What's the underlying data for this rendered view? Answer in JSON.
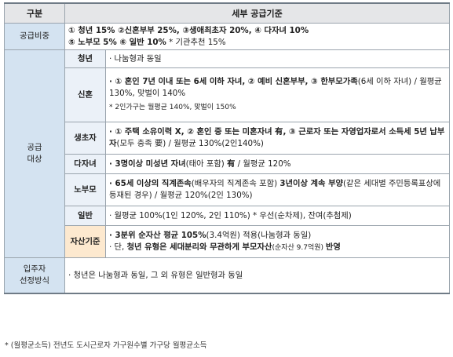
{
  "header": {
    "col1": "구분",
    "col2": "세부 공급기준"
  },
  "supply_ratio": {
    "label": "공급비중",
    "line1": "① 청년 15% ②신혼부부 25%, ③생애최초자 20%, ④ 다자녀 10%",
    "line2_bold": "⑤ 노부모 5% ⑥ 일반 10%",
    "line2_rest": "  * 기관추천 15%"
  },
  "target": {
    "label_line1": "공급",
    "label_line2": "대상",
    "youth": {
      "label": "청년",
      "text": "· 나눔형과 동일"
    },
    "newlywed": {
      "label": "신혼",
      "line1_bold": "· ① 혼인 7년 이내 또는 6세 이하 자녀, ② 예비 신혼부부, ③ 한부모가족",
      "line1_rest": "(6세 이하 자녀) / 월평균 130%, 맞벌이 140%",
      "note": "* 2인가구는 월평균 140%, 맞벌이 150%"
    },
    "first_time": {
      "label": "생초자",
      "line_bold": "· ① 주택 소유이력 X, ② 혼인 중 또는 미혼자녀 有, ③ 근로자 또는 자영업자로서 소득세 5년 납부자",
      "line_rest": "(모두 충족 要) / 월평균 130%(2인140%)"
    },
    "multi_child": {
      "label": "다자녀",
      "text_bold": "· 3명이상 미성년 자녀",
      "text_mid": "(태아 포함) ",
      "text_bold2": "有",
      "text_rest": "  / 월평균 120%"
    },
    "elderly": {
      "label": "노부모",
      "text_bold1": "· 65세 이상의 직계존속",
      "text_mid": "(배우자의 직계존속 포함) ",
      "text_bold2": "3년이상 계속 부양",
      "text_rest": "(같은 세대별 주민등록표상에 등재된 경우) / 월평균 120%(2인 130%)"
    },
    "general": {
      "label": "일반",
      "text": "· 월평균 100%(1인 120%, 2인 110%)  * 우선(순차제), 잔여(추첨제)"
    },
    "asset": {
      "label": "자산기준",
      "line1_bold": "· 3분위 순자산 평균 105%",
      "line1_mid": "(3.4억원)",
      "line1_rest": " 적용(나눔형과 동일)",
      "line2_a": "· 단, ",
      "line2_bold1": "청년 유형은 세대분리와 무관하게 부모자산",
      "line2_small": "(순자산 9.7억원) ",
      "line2_bold2": "반영"
    }
  },
  "selection": {
    "label_line1": "입주자",
    "label_line2": "선정방식",
    "text": "· 청년은 나눔형과 동일, 그 외 유형은 일반형과 동일"
  },
  "footnote": "* (월평균소득) 전년도 도시근로자 가구원수별 가구당 월평균소득"
}
